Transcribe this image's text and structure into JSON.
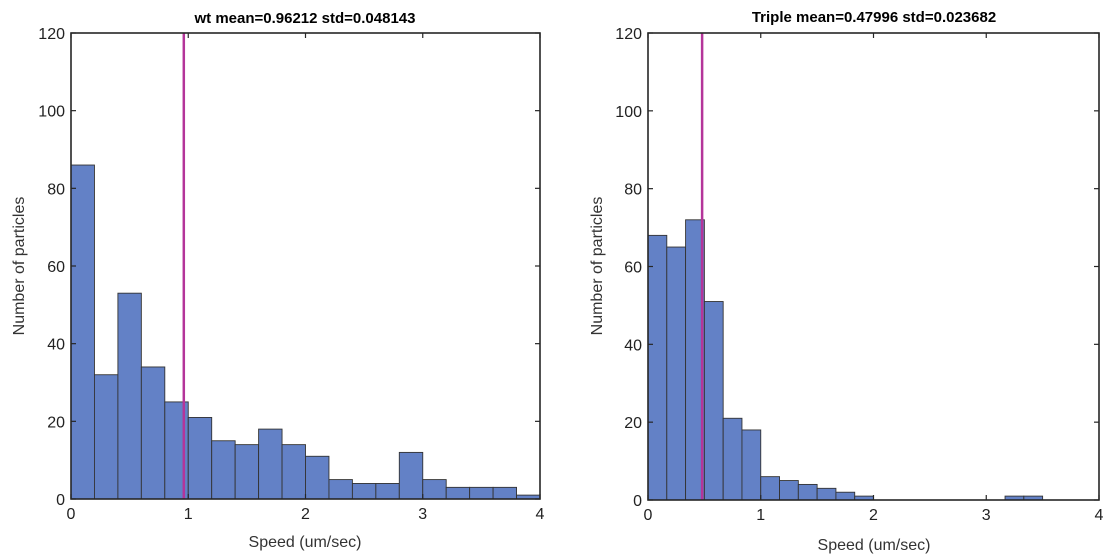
{
  "chart_data": [
    {
      "type": "bar",
      "title": "wt mean=0.96212 std=0.048143",
      "xlabel": "Speed (um/sec)",
      "ylabel": "Number of particles",
      "xlim": [
        0,
        4
      ],
      "ylim": [
        0,
        120
      ],
      "xticks": [
        0,
        1,
        2,
        3,
        4
      ],
      "yticks": [
        0,
        20,
        40,
        60,
        80,
        100,
        120
      ],
      "bin_edges": [
        0,
        0.2,
        0.4,
        0.6,
        0.8,
        1.0,
        1.2,
        1.4,
        1.6,
        1.8,
        2.0,
        2.2,
        2.4,
        2.6,
        2.8,
        3.0,
        3.2,
        3.4,
        3.6,
        3.8,
        4.0
      ],
      "values": [
        86,
        32,
        53,
        34,
        25,
        21,
        15,
        14,
        18,
        14,
        11,
        5,
        4,
        4,
        12,
        5,
        3,
        3,
        3,
        1
      ],
      "mean_line_x": 0.96212,
      "bar_color": "#6381c6",
      "mean_line_color": "#b4359a",
      "grid": false
    },
    {
      "type": "bar",
      "title": "Triple mean=0.47996 std=0.023682",
      "xlabel": "Speed (um/sec)",
      "ylabel": "Number of particles",
      "xlim": [
        0,
        4
      ],
      "ylim": [
        0,
        120
      ],
      "xticks": [
        0,
        1,
        2,
        3,
        4
      ],
      "yticks": [
        0,
        20,
        40,
        60,
        80,
        100,
        120
      ],
      "bin_edges": [
        0,
        0.1667,
        0.3333,
        0.5,
        0.6667,
        0.8333,
        1.0,
        1.1667,
        1.3333,
        1.5,
        1.6667,
        1.8333,
        2.0,
        2.1667,
        2.3333,
        2.5,
        2.6667,
        2.8333,
        3.0,
        3.1667,
        3.3333,
        3.5
      ],
      "values": [
        68,
        65,
        72,
        51,
        21,
        18,
        6,
        5,
        4,
        3,
        2,
        1,
        0,
        0,
        0,
        0,
        0,
        0,
        0,
        1,
        1
      ],
      "mean_line_x": 0.47996,
      "bar_color": "#6381c6",
      "mean_line_color": "#b4359a",
      "grid": false
    }
  ]
}
